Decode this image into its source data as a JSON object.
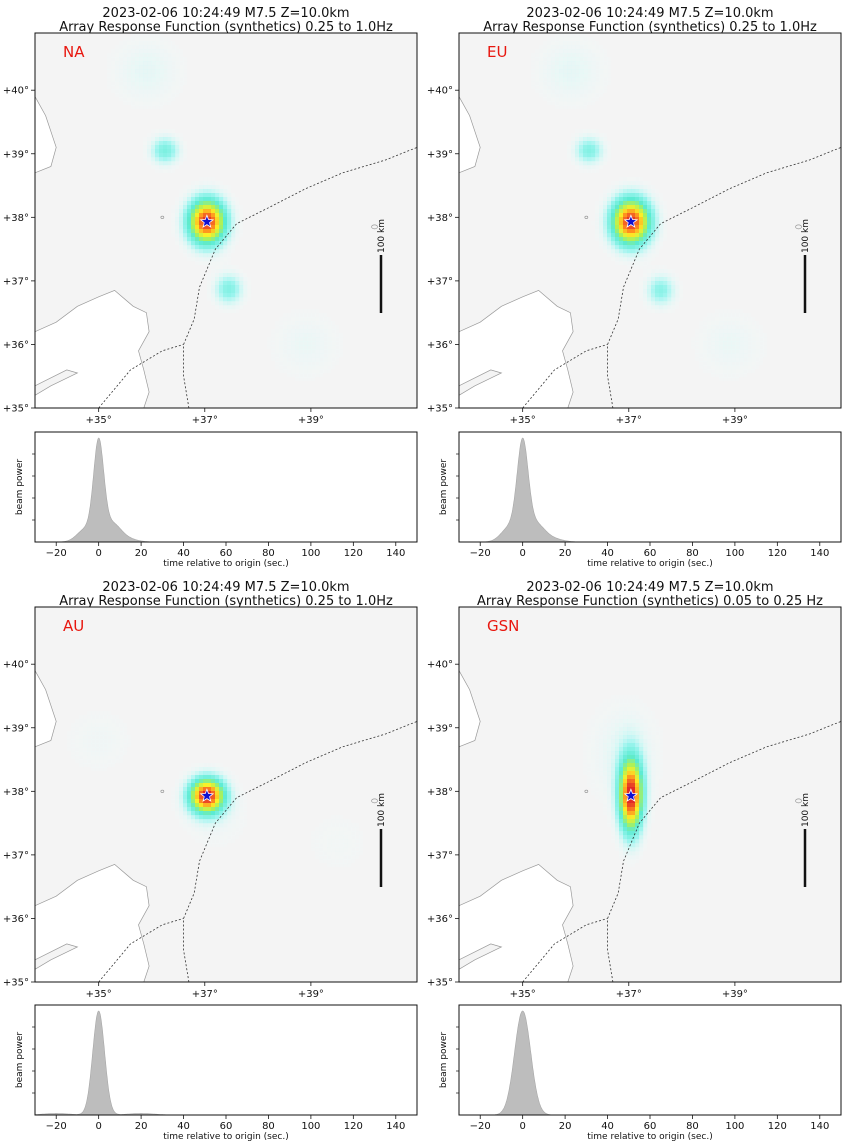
{
  "chart_data": [
    {
      "type": "heatmap",
      "title_line1": "2023-02-06 10:24:49 M7.5 Z=10.0km",
      "title_line2": "Array Response Function (synthetics) 0.25 to 1.0Hz",
      "network": "NA",
      "map": {
        "lon_range": [
          33.8,
          41.0
        ],
        "lat_range": [
          35.0,
          40.9
        ],
        "lon_ticks": [
          "+35°",
          "+37°",
          "+39°"
        ],
        "lon_tick_values": [
          35,
          37,
          39
        ],
        "lat_ticks": [
          "+35°",
          "+36°",
          "+37°",
          "+38°",
          "+39°",
          "+40°"
        ],
        "lat_tick_values": [
          35,
          36,
          37,
          38,
          39,
          40
        ],
        "epicenter": {
          "lon": 37.04,
          "lat": 37.93
        },
        "scale_bar_label": "100 km",
        "blobs": [
          {
            "lon": 37.04,
            "lat": 37.93,
            "amp": 1.0,
            "sx": 0.26,
            "sy": 0.26
          },
          {
            "lon": 36.25,
            "lat": 39.05,
            "amp": 0.32,
            "sx": 0.2,
            "sy": 0.16
          },
          {
            "lon": 37.45,
            "lat": 36.87,
            "amp": 0.3,
            "sx": 0.2,
            "sy": 0.18
          },
          {
            "lon": 35.9,
            "lat": 40.3,
            "amp": 0.1,
            "sx": 0.5,
            "sy": 0.4
          },
          {
            "lon": 38.9,
            "lat": 36.0,
            "amp": 0.08,
            "sx": 0.5,
            "sy": 0.4
          }
        ]
      },
      "beam": {
        "ylabel": "beam power",
        "xlabel": "time relative to origin (sec.)",
        "xlim": [
          -30,
          150
        ],
        "x_ticks": [
          -20,
          0,
          20,
          40,
          60,
          80,
          100,
          120,
          140
        ],
        "peaks": [
          {
            "t": 0,
            "amp": 1.0,
            "w": 2.4
          },
          {
            "t": -6,
            "amp": 0.14,
            "w": 4
          },
          {
            "t": 6,
            "amp": 0.18,
            "w": 4
          },
          {
            "t": 12,
            "amp": 0.04,
            "w": 5
          }
        ]
      }
    },
    {
      "type": "heatmap",
      "title_line1": "2023-02-06 10:24:49 M7.5 Z=10.0km",
      "title_line2": "Array Response Function (synthetics) 0.25 to 1.0Hz",
      "network": "EU",
      "map": {
        "lon_range": [
          33.8,
          41.0
        ],
        "lat_range": [
          35.0,
          40.9
        ],
        "lon_ticks": [
          "+35°",
          "+37°",
          "+39°"
        ],
        "lon_tick_values": [
          35,
          37,
          39
        ],
        "lat_ticks": [
          "+35°",
          "+36°",
          "+37°",
          "+38°",
          "+39°",
          "+40°"
        ],
        "lat_tick_values": [
          35,
          36,
          37,
          38,
          39,
          40
        ],
        "epicenter": {
          "lon": 37.04,
          "lat": 37.93
        },
        "scale_bar_label": "100 km",
        "blobs": [
          {
            "lon": 37.04,
            "lat": 37.93,
            "amp": 1.0,
            "sx": 0.27,
            "sy": 0.27
          },
          {
            "lon": 36.25,
            "lat": 39.05,
            "amp": 0.3,
            "sx": 0.2,
            "sy": 0.16
          },
          {
            "lon": 37.6,
            "lat": 36.85,
            "amp": 0.28,
            "sx": 0.2,
            "sy": 0.18
          },
          {
            "lon": 35.9,
            "lat": 40.3,
            "amp": 0.1,
            "sx": 0.5,
            "sy": 0.4
          },
          {
            "lon": 38.9,
            "lat": 36.0,
            "amp": 0.08,
            "sx": 0.5,
            "sy": 0.4
          }
        ]
      },
      "beam": {
        "ylabel": "beam power",
        "xlabel": "time relative to origin (sec.)",
        "xlim": [
          -30,
          150
        ],
        "x_ticks": [
          -20,
          0,
          20,
          40,
          60,
          80,
          100,
          120,
          140
        ],
        "peaks": [
          {
            "t": 0,
            "amp": 1.0,
            "w": 2.6
          },
          {
            "t": -6,
            "amp": 0.16,
            "w": 4
          },
          {
            "t": 6,
            "amp": 0.18,
            "w": 4
          },
          {
            "t": 13,
            "amp": 0.04,
            "w": 5
          }
        ]
      }
    },
    {
      "type": "heatmap",
      "title_line1": "2023-02-06 10:24:49 M7.5 Z=10.0km",
      "title_line2": "Array Response Function (synthetics) 0.25 to 1.0Hz",
      "network": "AU",
      "map": {
        "lon_range": [
          33.8,
          41.0
        ],
        "lat_range": [
          35.0,
          40.9
        ],
        "lon_ticks": [
          "+35°",
          "+37°",
          "+39°"
        ],
        "lon_tick_values": [
          35,
          37,
          39
        ],
        "lat_ticks": [
          "+35°",
          "+36°",
          "+37°",
          "+38°",
          "+39°",
          "+40°"
        ],
        "lat_tick_values": [
          35,
          36,
          37,
          38,
          39,
          40
        ],
        "epicenter": {
          "lon": 37.04,
          "lat": 37.93
        },
        "scale_bar_label": "100 km",
        "blobs": [
          {
            "lon": 37.04,
            "lat": 37.93,
            "amp": 1.0,
            "sx": 0.24,
            "sy": 0.2
          },
          {
            "lon": 37.2,
            "lat": 37.6,
            "amp": 0.06,
            "sx": 0.5,
            "sy": 0.4
          },
          {
            "lon": 35.0,
            "lat": 38.8,
            "amp": 0.06,
            "sx": 0.5,
            "sy": 0.4
          },
          {
            "lon": 39.5,
            "lat": 37.2,
            "amp": 0.05,
            "sx": 0.5,
            "sy": 0.4
          }
        ]
      },
      "beam": {
        "ylabel": "beam power",
        "xlabel": "time relative to origin (sec.)",
        "xlim": [
          -30,
          150
        ],
        "x_ticks": [
          -20,
          0,
          20,
          40,
          60,
          80,
          100,
          120,
          140
        ],
        "peaks": [
          {
            "t": 0,
            "amp": 1.0,
            "w": 2.8
          },
          {
            "t": -20,
            "amp": 0.015,
            "w": 6
          },
          {
            "t": 20,
            "amp": 0.015,
            "w": 6
          }
        ]
      }
    },
    {
      "type": "heatmap",
      "title_line1": "2023-02-06 10:24:49 M7.5 Z=10.0km",
      "title_line2": "Array Response Function (synthetics) 0.05 to 0.25 Hz",
      "network": "GSN",
      "map": {
        "lon_range": [
          33.8,
          41.0
        ],
        "lat_range": [
          35.0,
          40.9
        ],
        "lon_ticks": [
          "+35°",
          "+37°",
          "+39°"
        ],
        "lon_tick_values": [
          35,
          37,
          39
        ],
        "lat_ticks": [
          "+35°",
          "+36°",
          "+37°",
          "+38°",
          "+39°",
          "+40°"
        ],
        "lat_tick_values": [
          35,
          36,
          37,
          38,
          39,
          40
        ],
        "epicenter": {
          "lon": 37.04,
          "lat": 37.93
        },
        "scale_bar_label": "100 km",
        "blobs": [
          {
            "lon": 37.04,
            "lat": 37.93,
            "amp": 1.0,
            "sx": 0.16,
            "sy": 0.42
          },
          {
            "lon": 36.9,
            "lat": 38.6,
            "amp": 0.1,
            "sx": 0.5,
            "sy": 0.6
          }
        ]
      },
      "beam": {
        "ylabel": "beam power",
        "xlabel": "time relative to origin (sec.)",
        "xlim": [
          -30,
          150
        ],
        "x_ticks": [
          -20,
          0,
          20,
          40,
          60,
          80,
          100,
          120,
          140
        ],
        "peaks": [
          {
            "t": 0,
            "amp": 1.0,
            "w": 3.8
          }
        ]
      }
    }
  ]
}
